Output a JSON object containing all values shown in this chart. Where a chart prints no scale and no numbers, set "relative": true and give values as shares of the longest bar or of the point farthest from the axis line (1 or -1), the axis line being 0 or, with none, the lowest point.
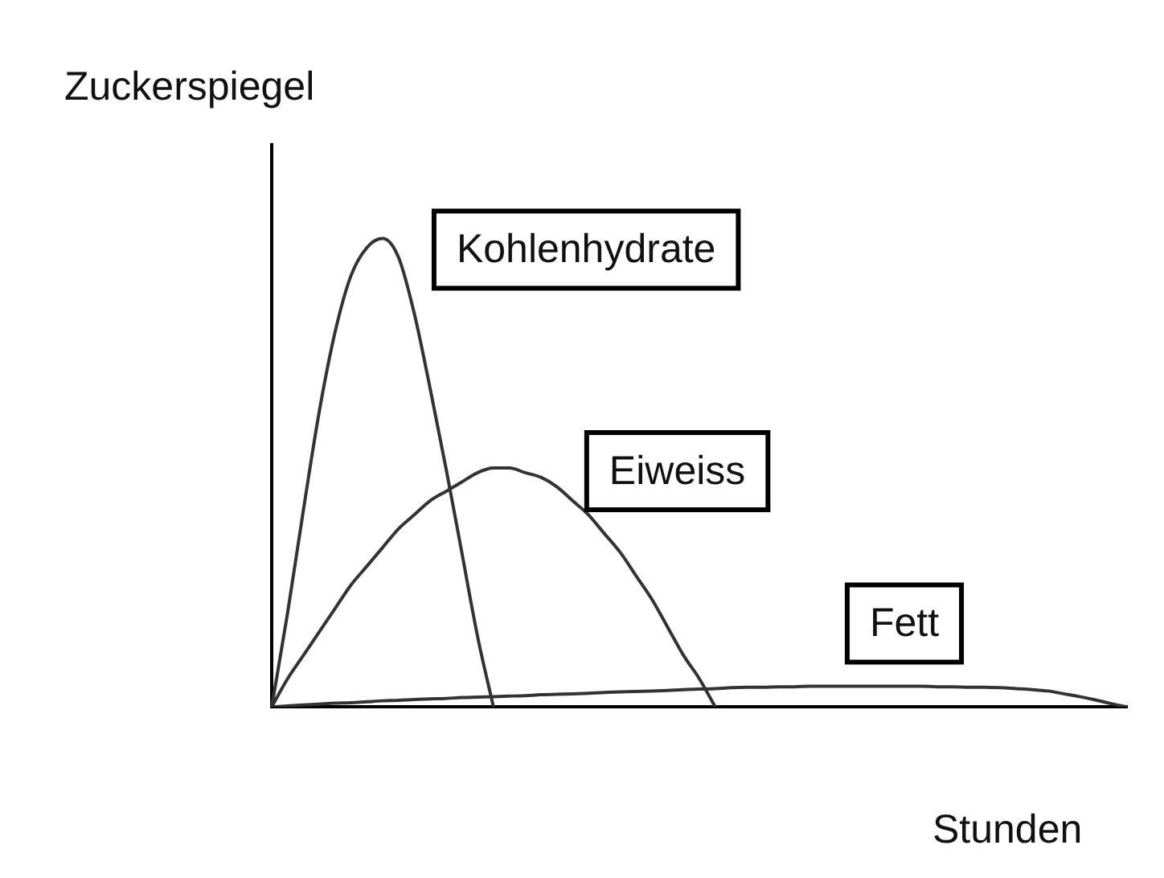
{
  "chart_data": {
    "type": "line",
    "relative": true,
    "xlabel": "Stunden",
    "ylabel": "Zuckerspiegel",
    "grid": false,
    "legend": false,
    "marker": "none",
    "line_style": "solid",
    "categories": [
      null,
      null,
      null,
      null,
      null,
      null,
      null,
      null,
      null,
      null,
      null,
      null,
      null,
      null,
      null,
      null,
      null,
      null,
      null,
      null,
      null,
      null,
      null,
      null,
      null,
      null,
      null,
      null,
      null,
      null,
      null,
      null,
      null,
      null,
      null,
      null,
      null,
      null,
      null,
      null,
      null,
      null,
      null,
      null,
      null,
      null,
      null,
      null,
      null,
      null,
      null,
      null,
      null,
      null,
      null
    ],
    "series": [
      {
        "name": "Kohlenhydrate",
        "color": "#333333",
        "values": [
          0,
          0.2,
          0.42,
          0.63,
          0.8,
          0.92,
          0.98,
          1,
          0.96,
          0.84,
          0.68,
          0.51,
          0.33,
          0.15,
          0,
          null,
          null,
          null,
          null,
          null,
          null,
          null,
          null,
          null,
          null,
          null,
          null,
          null,
          null,
          null,
          null,
          null,
          null,
          null,
          null,
          null,
          null,
          null,
          null,
          null,
          null,
          null,
          null,
          null,
          null,
          null,
          null,
          null,
          null,
          null,
          null,
          null,
          null,
          null,
          null
        ]
      },
      {
        "name": "Eiweiss",
        "color": "#333333",
        "values": [
          0,
          0.06,
          0.11,
          0.16,
          0.21,
          0.26,
          0.3,
          0.34,
          0.38,
          0.41,
          0.44,
          0.46,
          0.48,
          0.5,
          0.51,
          0.51,
          0.5,
          0.49,
          0.47,
          0.44,
          0.41,
          0.37,
          0.33,
          0.28,
          0.23,
          0.17,
          0.11,
          0.06,
          0,
          null,
          null,
          null,
          null,
          null,
          null,
          null,
          null,
          null,
          null,
          null,
          null,
          null,
          null,
          null,
          null,
          null,
          null,
          null,
          null,
          null,
          null,
          null,
          null,
          null,
          null
        ]
      },
      {
        "name": "Fett",
        "color": "#333333",
        "values": [
          0,
          0.002,
          0.004,
          0.006,
          0.008,
          0.009,
          0.011,
          0.013,
          0.014,
          0.016,
          0.017,
          0.018,
          0.02,
          0.021,
          0.022,
          0.023,
          0.024,
          0.026,
          0.027,
          0.028,
          0.029,
          0.031,
          0.032,
          0.033,
          0.034,
          0.035,
          0.037,
          0.038,
          0.039,
          0.041,
          0.042,
          0.042,
          0.043,
          0.043,
          0.044,
          0.044,
          0.044,
          0.044,
          0.044,
          0.044,
          0.044,
          0.044,
          0.043,
          0.043,
          0.042,
          0.042,
          0.041,
          0.039,
          0.037,
          0.034,
          0.028,
          0.022,
          0.015,
          0.007,
          0
        ]
      }
    ]
  }
}
